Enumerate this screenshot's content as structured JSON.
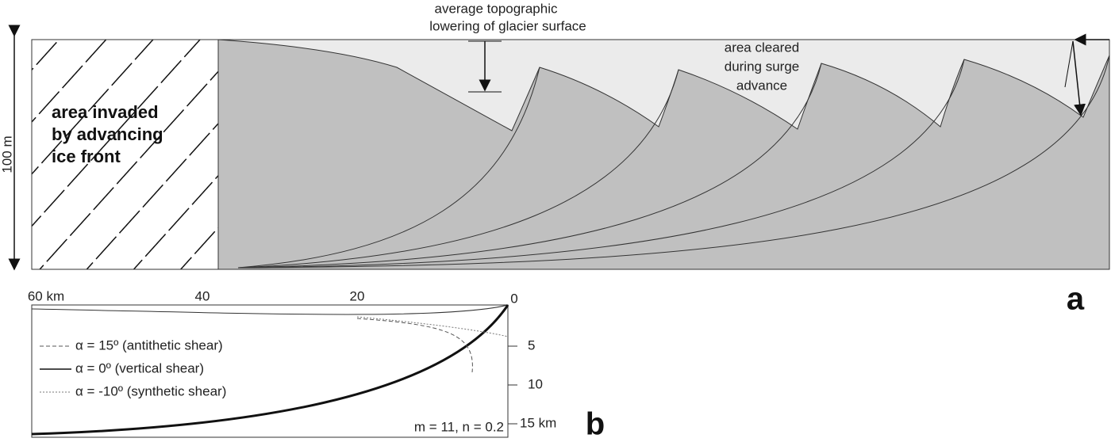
{
  "panel_a": {
    "label": "a",
    "height_label": "100 m",
    "invaded_area": [
      "area invaded",
      "by advancing",
      "ice front"
    ],
    "lowering_note": [
      "average topographic",
      "lowering of glacier surface"
    ],
    "cleared_note": [
      "area cleared",
      "during surge",
      "advance"
    ]
  },
  "panel_b": {
    "label": "b",
    "top_ticks": [
      "60 km",
      "40",
      "20",
      "0"
    ],
    "right_ticks": [
      "5",
      "10",
      "15 km"
    ],
    "legend": [
      "α = 15º (antithetic shear)",
      "α = 0º (vertical shear)",
      "α = -10º (synthetic shear)"
    ],
    "parameters": "m = 11, n = 0.2"
  }
}
